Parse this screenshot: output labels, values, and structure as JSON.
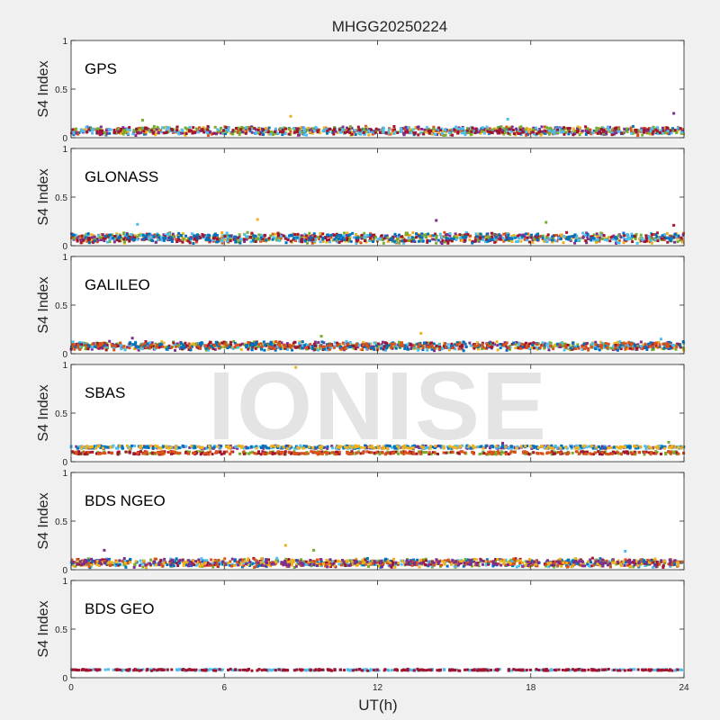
{
  "figure": {
    "title": "MHGG20250224",
    "watermark": "IONISE",
    "xlabel": "UT(h)",
    "ylabel": "S4 Index"
  },
  "colors": {
    "background": "#f0f0f0",
    "axes_background": "#ffffff",
    "series": [
      "#0072BD",
      "#D95319",
      "#EDB120",
      "#7E2F8E",
      "#77AC30",
      "#4DBEEE",
      "#A2142F"
    ]
  },
  "chart_data": [
    {
      "type": "scatter",
      "label": "GPS",
      "xlabel": "UT(h)",
      "ylabel": "S4 Index",
      "xlim": [
        0,
        24
      ],
      "ylim": [
        0,
        1
      ],
      "xticks": [
        "0",
        "6",
        "12",
        "18",
        "24"
      ],
      "yticks": [
        "0",
        "0.5",
        "1"
      ],
      "grid": false,
      "baseline_s4": 0.07,
      "spread_s4": 0.05,
      "notable_points": [
        {
          "x": 8.6,
          "y": 0.22
        },
        {
          "x": 23.6,
          "y": 0.25
        },
        {
          "x": 2.8,
          "y": 0.18
        },
        {
          "x": 17.1,
          "y": 0.19
        }
      ]
    },
    {
      "type": "scatter",
      "label": "GLONASS",
      "xlabel": "UT(h)",
      "ylabel": "S4 Index",
      "xlim": [
        0,
        24
      ],
      "ylim": [
        0,
        1
      ],
      "xticks": [
        "0",
        "6",
        "12",
        "18",
        "24"
      ],
      "yticks": [
        "0",
        "0.5",
        "1"
      ],
      "grid": false,
      "baseline_s4": 0.08,
      "spread_s4": 0.06,
      "notable_points": [
        {
          "x": 7.3,
          "y": 0.27
        },
        {
          "x": 14.3,
          "y": 0.26
        },
        {
          "x": 18.6,
          "y": 0.24
        },
        {
          "x": 2.6,
          "y": 0.22
        },
        {
          "x": 23.6,
          "y": 0.21
        }
      ]
    },
    {
      "type": "scatter",
      "label": "GALILEO",
      "xlabel": "UT(h)",
      "ylabel": "S4 Index",
      "xlim": [
        0,
        24
      ],
      "ylim": [
        0,
        1
      ],
      "xticks": [
        "0",
        "6",
        "12",
        "18",
        "24"
      ],
      "yticks": [
        "0",
        "0.5",
        "1"
      ],
      "grid": false,
      "baseline_s4": 0.08,
      "spread_s4": 0.05,
      "notable_points": [
        {
          "x": 13.7,
          "y": 0.21
        },
        {
          "x": 2.4,
          "y": 0.16
        },
        {
          "x": 9.8,
          "y": 0.18
        },
        {
          "x": 23.1,
          "y": 0.15
        }
      ]
    },
    {
      "type": "scatter",
      "label": "SBAS",
      "xlabel": "UT(h)",
      "ylabel": "S4 Index",
      "xlim": [
        0,
        24
      ],
      "ylim": [
        0,
        1
      ],
      "xticks": [
        "0",
        "6",
        "12",
        "18",
        "24"
      ],
      "yticks": [
        "0",
        "0.5",
        "1"
      ],
      "grid": false,
      "baseline_s4": 0.13,
      "spread_s4": 0.03,
      "notable_points": [
        {
          "x": 8.8,
          "y": 0.97
        },
        {
          "x": 16.9,
          "y": 0.19
        },
        {
          "x": 23.4,
          "y": 0.2
        }
      ]
    },
    {
      "type": "scatter",
      "label": "BDS NGEO",
      "xlabel": "UT(h)",
      "ylabel": "S4 Index",
      "xlim": [
        0,
        24
      ],
      "ylim": [
        0,
        1
      ],
      "xticks": [
        "0",
        "6",
        "12",
        "18",
        "24"
      ],
      "yticks": [
        "0",
        "0.5",
        "1"
      ],
      "grid": false,
      "baseline_s4": 0.07,
      "spread_s4": 0.05,
      "notable_points": [
        {
          "x": 8.4,
          "y": 0.25
        },
        {
          "x": 1.3,
          "y": 0.2
        },
        {
          "x": 9.5,
          "y": 0.2
        },
        {
          "x": 21.7,
          "y": 0.19
        }
      ]
    },
    {
      "type": "scatter",
      "label": "BDS GEO",
      "xlabel": "UT(h)",
      "ylabel": "S4 Index",
      "xlim": [
        0,
        24
      ],
      "ylim": [
        0,
        1
      ],
      "xticks": [
        "0",
        "6",
        "12",
        "18",
        "24"
      ],
      "yticks": [
        "0",
        "0.5",
        "1"
      ],
      "grid": false,
      "baseline_s4": 0.08,
      "spread_s4": 0.01,
      "notable_points": []
    }
  ]
}
